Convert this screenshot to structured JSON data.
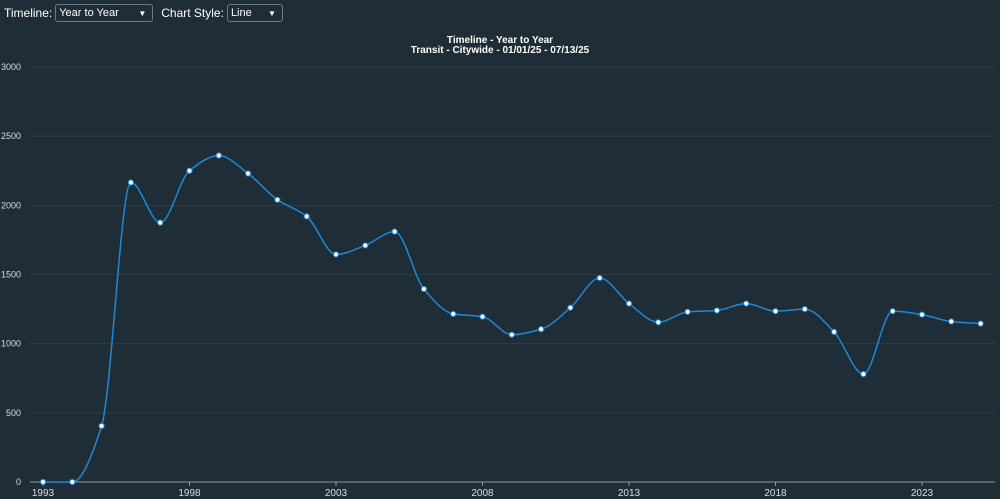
{
  "controls": {
    "timeline_label": "Timeline:",
    "timeline_value": "Year to Year",
    "chart_style_label": "Chart Style:",
    "chart_style_value": "Line"
  },
  "colors": {
    "background": "#1f2d36",
    "line": "#1e88d8",
    "marker_fill": "#ffffff",
    "gridline": "#2c3d49"
  },
  "chart_data": {
    "type": "line",
    "title": "Timeline - Year to Year",
    "subtitle": "Transit - Citywide - 01/01/25 - 07/13/25",
    "xlabel": "",
    "ylabel": "",
    "ylim": [
      0,
      3000
    ],
    "yticks": [
      0,
      500,
      1000,
      1500,
      2000,
      2500,
      3000
    ],
    "xticks": [
      1993,
      1998,
      2003,
      2008,
      2013,
      2018,
      2023
    ],
    "grid": true,
    "x": [
      1993,
      1994,
      1995,
      1996,
      1997,
      1998,
      1999,
      2000,
      2001,
      2002,
      2003,
      2004,
      2005,
      2006,
      2007,
      2008,
      2009,
      2010,
      2011,
      2012,
      2013,
      2014,
      2015,
      2016,
      2017,
      2018,
      2019,
      2020,
      2021,
      2022,
      2023,
      2024,
      2025
    ],
    "series": [
      {
        "name": "Transit - Citywide",
        "values": [
          0,
          0,
          405,
          2165,
          1875,
          2250,
          2360,
          2230,
          2040,
          1920,
          1645,
          1710,
          1810,
          1395,
          1215,
          1195,
          1065,
          1105,
          1260,
          1475,
          1290,
          1155,
          1230,
          1240,
          1290,
          1235,
          1250,
          1085,
          780,
          1235,
          1210,
          1160,
          1145
        ]
      }
    ]
  }
}
